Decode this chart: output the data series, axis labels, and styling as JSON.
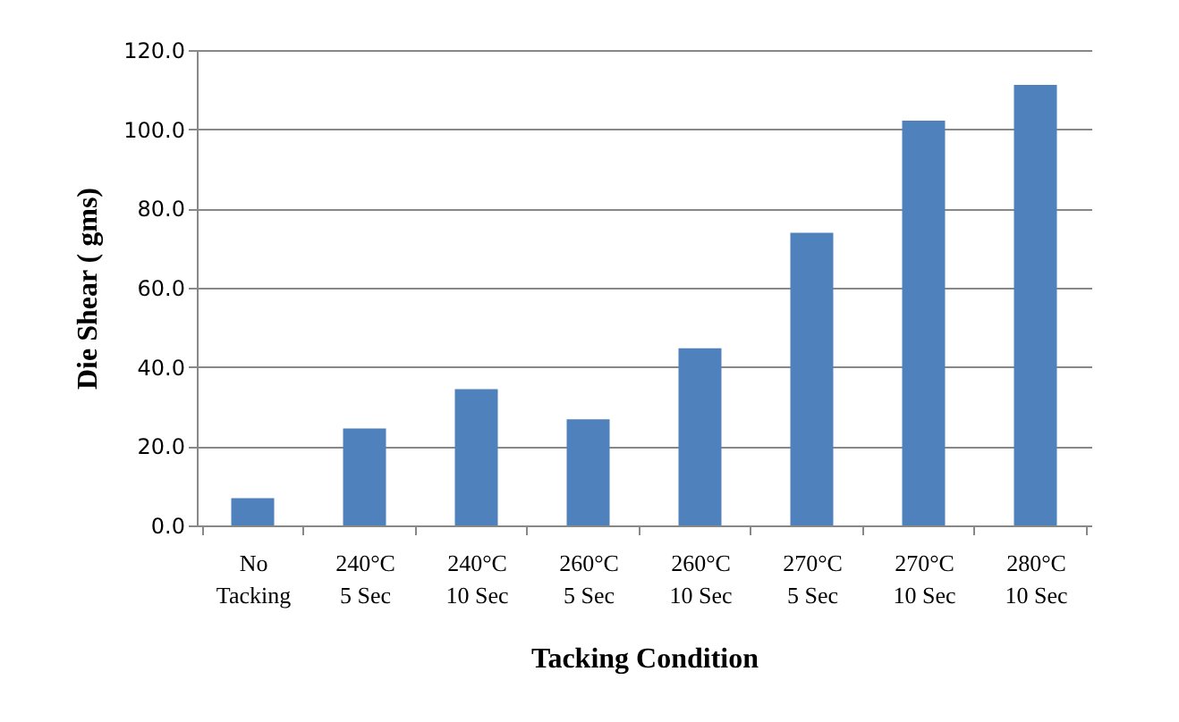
{
  "chart_data": {
    "type": "bar",
    "xlabel": "Tacking Condition",
    "ylabel": "Die Shear ( gms)",
    "categories": [
      "No\nTacking",
      "240°C\n5 Sec",
      "240°C\n10 Sec",
      "260°C\n5 Sec",
      "260°C\n10 Sec",
      "270°C\n5 Sec",
      "270°C\n10 Sec",
      "280°C\n10 Sec"
    ],
    "values": [
      6.9,
      24.5,
      34.4,
      26.8,
      44.7,
      73.9,
      102.2,
      111.2
    ],
    "color": "#4f81bd",
    "ylim": [
      0,
      120
    ],
    "yticks": [
      {
        "value": 0,
        "label": "0.0"
      },
      {
        "value": 20,
        "label": "20.0"
      },
      {
        "value": 40,
        "label": "40.0"
      },
      {
        "value": 60,
        "label": "60.0"
      },
      {
        "value": 80,
        "label": "80.0"
      },
      {
        "value": 100,
        "label": "100.0"
      },
      {
        "value": 120,
        "label": "120.0"
      }
    ],
    "grid": "y"
  }
}
